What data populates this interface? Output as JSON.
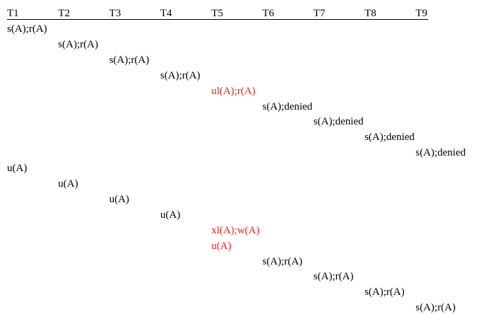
{
  "headers": [
    "T1",
    "T2",
    "T3",
    "T4",
    "T5",
    "T6",
    "T7",
    "T8",
    "T9"
  ],
  "colors": {
    "normal": "#000000",
    "highlight": "#e8201e"
  },
  "operations": [
    {
      "row": 1,
      "col": 1,
      "text": "s(A);r(A)",
      "highlight": false
    },
    {
      "row": 2,
      "col": 2,
      "text": "s(A);r(A)",
      "highlight": false
    },
    {
      "row": 3,
      "col": 3,
      "text": "s(A);r(A)",
      "highlight": false
    },
    {
      "row": 4,
      "col": 4,
      "text": "s(A);r(A)",
      "highlight": false
    },
    {
      "row": 5,
      "col": 5,
      "text": "ul(A);r(A)",
      "highlight": true
    },
    {
      "row": 6,
      "col": 6,
      "text": "s(A);denied",
      "highlight": false
    },
    {
      "row": 7,
      "col": 7,
      "text": "s(A);denied",
      "highlight": false
    },
    {
      "row": 8,
      "col": 8,
      "text": "s(A);denied",
      "highlight": false
    },
    {
      "row": 9,
      "col": 9,
      "text": "s(A);denied",
      "highlight": false
    },
    {
      "row": 10,
      "col": 1,
      "text": "u(A)",
      "highlight": false
    },
    {
      "row": 11,
      "col": 2,
      "text": "u(A)",
      "highlight": false
    },
    {
      "row": 12,
      "col": 3,
      "text": "u(A)",
      "highlight": false
    },
    {
      "row": 13,
      "col": 4,
      "text": "u(A)",
      "highlight": false
    },
    {
      "row": 14,
      "col": 5,
      "text": "xl(A);w(A)",
      "highlight": true
    },
    {
      "row": 15,
      "col": 5,
      "text": "u(A)",
      "highlight": true
    },
    {
      "row": 16,
      "col": 6,
      "text": "s(A);r(A)",
      "highlight": false
    },
    {
      "row": 17,
      "col": 7,
      "text": "s(A);r(A)",
      "highlight": false
    },
    {
      "row": 18,
      "col": 8,
      "text": "s(A);r(A)",
      "highlight": false
    },
    {
      "row": 19,
      "col": 9,
      "text": "s(A);r(A)",
      "highlight": false
    }
  ]
}
